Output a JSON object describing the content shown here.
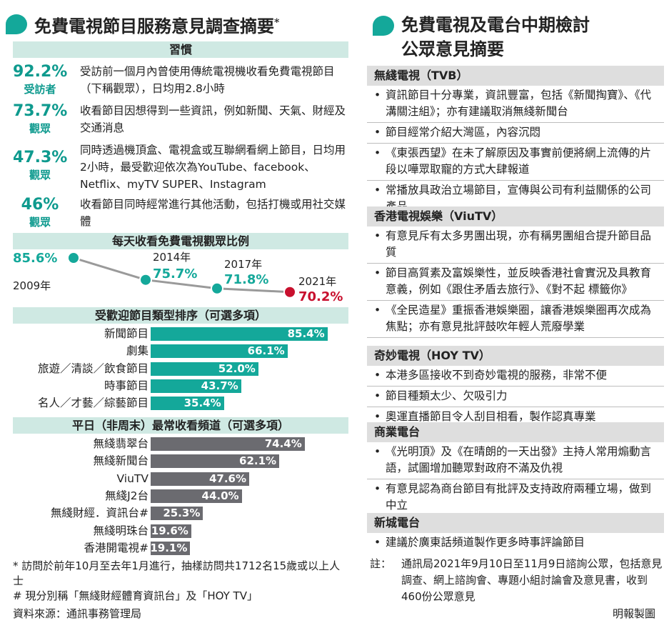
{
  "left": {
    "title": "免費電視節目服務意見調查摘要",
    "title_mark": "*",
    "habits_heading": "習慣",
    "habits": [
      {
        "pct": "92.2%",
        "who": "受訪者",
        "text": "受訪前一個月內曾使用傳統電視機收看免費電視節目（下稱觀眾），日均用2.8小時"
      },
      {
        "pct": "73.7%",
        "who": "觀眾",
        "text": "收看節目因想得到一些資訊，例如新聞、天氣、財經及交通消息"
      },
      {
        "pct": "47.3%",
        "who": "觀眾",
        "text": "同時透過機頂盒、電視盒或互聯網看網上節目，日均用2小時，最受歡迎依次為YouTube、facebook、Netflix、myTV SUPER、Instagram"
      },
      {
        "pct": "46%",
        "who": "觀眾",
        "text": "收看節目同時經常進行其他活動，包括打機或用社交媒體"
      }
    ],
    "notes": [
      "* 訪問於前年10月至去年1月進行，抽樣訪問共1712名15歲或以上人士",
      "# 現分別稱「無綫財經體育資訊台」及「HOY TV」"
    ]
  },
  "chart_data": [
    {
      "type": "line",
      "title": "每天收看免費電視觀眾比例",
      "x": [
        "2009年",
        "2014年",
        "2017年",
        "2021年"
      ],
      "values": [
        85.6,
        75.7,
        71.8,
        70.2
      ],
      "labels": [
        "85.6%",
        "75.7%",
        "71.8%",
        "70.2%"
      ],
      "colors": {
        "point": "#14a89a",
        "last_point": "#c8102e",
        "line": "#9a9a9a"
      }
    },
    {
      "type": "bar",
      "title": "受歡迎節目類型排序（可選多項）",
      "categories": [
        "新聞節目",
        "劇集",
        "旅遊／清談／飲食節目",
        "時事節目",
        "名人／才藝／綜藝節目"
      ],
      "values": [
        85.4,
        66.1,
        52.0,
        43.7,
        35.4
      ],
      "labels": [
        "85.4%",
        "66.1%",
        "52.0%",
        "43.7%",
        "35.4%"
      ],
      "color": "#14a89a"
    },
    {
      "type": "bar",
      "title": "平日（非周末）最常收看頻道（可選多項）",
      "categories": [
        "無綫翡翠台",
        "無綫新聞台",
        "ViuTV",
        "無綫J2台",
        "無綫財經．資訊台#",
        "無綫明珠台",
        "香港開電視#"
      ],
      "values": [
        74.4,
        62.1,
        47.6,
        44.0,
        25.3,
        19.6,
        19.1
      ],
      "labels": [
        "74.4%",
        "62.1%",
        "47.6%",
        "44.0%",
        "25.3%",
        "19.6%",
        "19.1%"
      ],
      "color": "#6b6b70"
    }
  ],
  "right": {
    "title_line1": "免費電視及電台中期檢討",
    "title_line2": "公眾意見摘要",
    "stations": [
      {
        "name": "無綫電視（TVB）",
        "points": [
          "資訊節目十分專業，資訊豐富，包括《新聞掏寶》、《代溝關注組》；亦有建議取消無綫新聞台",
          "節目經常介紹大灣區，內容沉悶",
          "《東張西望》在未了解原因及事實前便將網上流傳的片段以嘩眾取寵的方式大肆報道",
          "常播放具政治立場節目，宣傳與公司有利益關係的公司產品"
        ]
      },
      {
        "name": "香港電視娛樂（ViuTV）",
        "points": [
          "有意見斥有太多男團出現，亦有稱男團組合提升節目品質",
          "節目高質素及富娛樂性，並反映香港社會實況及具教育意義，例如《跟住矛盾去旅行》、《對不起 標籤你》",
          "《全民造星》重振香港娛樂圈，讓香港娛樂圈再次成為焦點；亦有意見批評鼓吹年輕人荒廢學業"
        ]
      },
      {
        "name": "奇妙電視（HOY TV）",
        "points": [
          "本港多區接收不到奇妙電視的服務，非常不便",
          "節目種類太少、欠吸引力",
          "奧運直播節目令人刮目相看，製作認真專業"
        ]
      },
      {
        "name": "商業電台",
        "points": [
          "《光明頂》及《在晴朗的一天出發》主持人常用煽動言語，試圖增加聽眾對政府不滿及仇視",
          "有意見認為商台節目有批評及支持政府兩種立場，做到中立"
        ]
      },
      {
        "name": "新城電台",
        "points": [
          "建議於廣東話頻道製作更多時事評論節目"
        ]
      }
    ],
    "note_key": "註：",
    "note_text": "通訊局2021年9月10日至11月9日諮詢公眾，包括意見調查、網上諮詢會、專題小組討論會及意見書，收到460份公眾意見"
  },
  "footer": {
    "source": "資料來源：通訊事務管理局",
    "credit": "明報製圖"
  }
}
